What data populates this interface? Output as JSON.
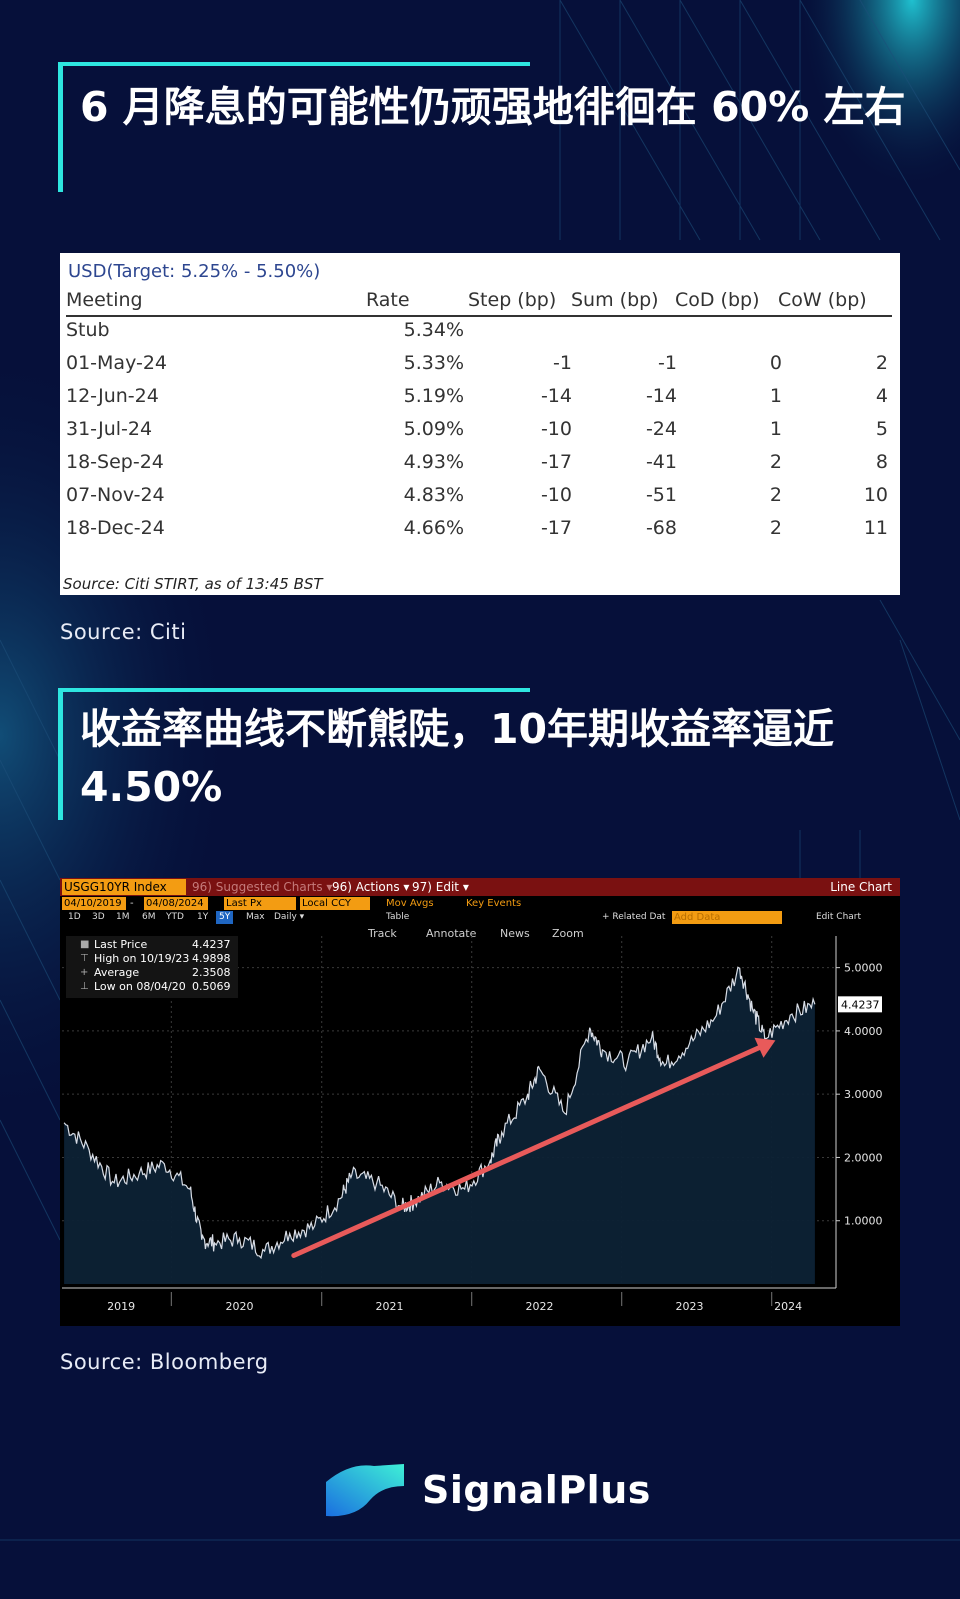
{
  "headings": {
    "first": "6 月降息的可能性仍顽强地徘徊在 60% 左右",
    "second": "收益率曲线不断熊陡，10年期收益率逼近 4.50%"
  },
  "sources": {
    "citi": "Source: Citi",
    "bloomberg": "Source: Bloomberg"
  },
  "table": {
    "title": "USD(Target: 5.25% - 5.50%)",
    "columns": [
      "Meeting",
      "Rate",
      "Step (bp)",
      "Sum (bp)",
      "CoD (bp)",
      "CoW (bp)"
    ],
    "rows": [
      [
        "Stub",
        "5.34%",
        "",
        "",
        "",
        ""
      ],
      [
        "01-May-24",
        "5.33%",
        "-1",
        "-1",
        "0",
        "2"
      ],
      [
        "12-Jun-24",
        "5.19%",
        "-14",
        "-14",
        "1",
        "4"
      ],
      [
        "31-Jul-24",
        "5.09%",
        "-10",
        "-24",
        "1",
        "5"
      ],
      [
        "18-Sep-24",
        "4.93%",
        "-17",
        "-41",
        "2",
        "8"
      ],
      [
        "07-Nov-24",
        "4.83%",
        "-10",
        "-51",
        "2",
        "10"
      ],
      [
        "18-Dec-24",
        "4.66%",
        "-17",
        "-68",
        "2",
        "11"
      ]
    ],
    "footnote": "Source: Citi STIRT, as of 13:45 BST"
  },
  "terminal": {
    "ticker": "USGG10YR Index",
    "suggested": "96) Suggested Charts ▾",
    "actions": "96) Actions ▾",
    "edit": "97) Edit ▾",
    "line_chart": "Line Chart",
    "start_date": "04/10/2019",
    "end_date": "04/08/2024",
    "field": "Last Px",
    "currency": "Local CCY",
    "mov_avgs": "Mov Avgs",
    "key_events": "Key Events",
    "ranges": [
      "1D",
      "3D",
      "1M",
      "6M",
      "YTD",
      "1Y",
      "5Y",
      "Max"
    ],
    "selected_range": "5Y",
    "frequency": "Daily ▾",
    "table_label": "Table",
    "related": "+ Related Dat",
    "add_data": "Add Data",
    "edit_chart": "Edit Chart",
    "tools": [
      "Track",
      "Annotate",
      "News",
      "Zoom"
    ],
    "legend": [
      {
        "label": "Last Price",
        "value": "4.4237"
      },
      {
        "label": "High on 10/19/23",
        "value": "4.9898"
      },
      {
        "label": "Average",
        "value": "2.3508"
      },
      {
        "label": "Low on 08/04/20",
        "value": "0.5069"
      }
    ],
    "last_badge": "4.4237",
    "colors": {
      "line": "#d8dde6",
      "fill": "#0d2235",
      "arrow": "#e85a5a",
      "badge_bg": "#ffffff"
    }
  },
  "chart_data": {
    "type": "area",
    "title": "USGG10YR Index",
    "series": [
      {
        "name": "Last Price",
        "x": [
          "2019-04",
          "2019-06",
          "2019-08",
          "2019-10",
          "2019-12",
          "2020-02",
          "2020-03",
          "2020-04",
          "2020-06",
          "2020-08",
          "2020-10",
          "2020-12",
          "2021-02",
          "2021-03",
          "2021-05",
          "2021-07",
          "2021-08",
          "2021-10",
          "2021-12",
          "2022-02",
          "2022-03",
          "2022-05",
          "2022-06",
          "2022-08",
          "2022-10",
          "2022-11",
          "2023-01",
          "2023-03",
          "2023-04",
          "2023-06",
          "2023-08",
          "2023-10",
          "2023-11",
          "2023-12",
          "2024-02",
          "2024-04"
        ],
        "y": [
          2.55,
          2.12,
          1.6,
          1.75,
          1.9,
          1.5,
          0.7,
          0.65,
          0.72,
          0.52,
          0.8,
          0.92,
          1.35,
          1.72,
          1.6,
          1.22,
          1.3,
          1.6,
          1.5,
          1.95,
          2.4,
          2.95,
          3.4,
          2.7,
          4.05,
          3.7,
          3.5,
          3.9,
          3.45,
          3.8,
          4.2,
          4.99,
          4.35,
          3.88,
          4.25,
          4.42
        ]
      }
    ],
    "x_ticks": [
      "2019",
      "2020",
      "2021",
      "2022",
      "2023",
      "2024"
    ],
    "y_ticks": [
      "1.0000",
      "2.0000",
      "3.0000",
      "4.0000",
      "5.0000"
    ],
    "ylim": [
      0,
      5.5
    ],
    "grid": true,
    "legend_position": "top-left",
    "annotation": "upward arrow from 2020-10 to 2024-01"
  }
}
